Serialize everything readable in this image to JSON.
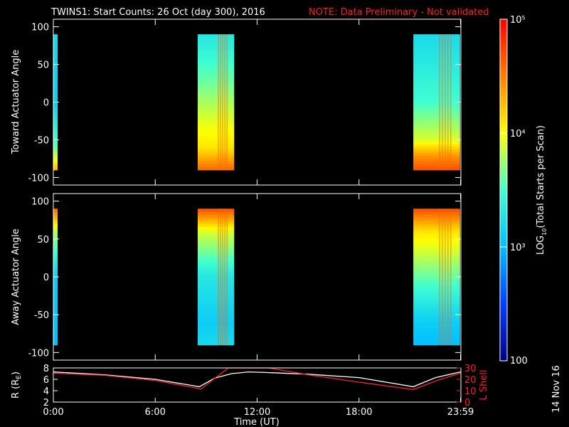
{
  "header": {
    "title": "TWINS1: Start Counts: 26 Oct (day 300), 2016",
    "note": "NOTE: Data Preliminary - Not validated"
  },
  "colorbar": {
    "label": "LOG10(Total Starts per Scan)",
    "label_base": "LOG",
    "label_sub": "10",
    "label_rest": "(Total Starts per Scan)",
    "ticks": [
      "100",
      "10³",
      "10⁴",
      "10⁵"
    ],
    "range": [
      100,
      100000
    ],
    "scale": "log",
    "colors": [
      "#00008b",
      "#0040ff",
      "#00c0ff",
      "#40ffd0",
      "#ffff00",
      "#ff8000",
      "#ff0000"
    ]
  },
  "footer": {
    "date_stamp": "14 Nov 16"
  },
  "chart_data": [
    {
      "type": "heatmap",
      "panel": "toward",
      "ylabel": "Toward Actuator Angle",
      "xlim": [
        "0:00",
        "23:59"
      ],
      "ylim": [
        -110,
        110
      ],
      "yticks": [
        "100",
        "50",
        "0",
        "-50",
        "-100"
      ],
      "angle_range": [
        -90,
        90
      ],
      "data_intervals": [
        {
          "start_hour": 0.0,
          "end_hour": 0.25,
          "level_by_angle": [
            {
              "angle": 90,
              "log": 3.2
            },
            {
              "angle": 0,
              "log": 3.1
            },
            {
              "angle": -60,
              "log": 3.6
            },
            {
              "angle": -90,
              "log": 4.3
            }
          ]
        },
        {
          "start_hour": 8.5,
          "end_hour": 10.65,
          "level_by_angle": [
            {
              "angle": 90,
              "log": 3.3
            },
            {
              "angle": 30,
              "log": 3.6
            },
            {
              "angle": -30,
              "log": 3.95
            },
            {
              "angle": -60,
              "log": 4.1
            },
            {
              "angle": -90,
              "log": 4.6
            }
          ]
        },
        {
          "start_hour": 21.2,
          "end_hour": 23.95,
          "level_by_angle": [
            {
              "angle": 90,
              "log": 3.2
            },
            {
              "angle": 0,
              "log": 3.5
            },
            {
              "angle": -50,
              "log": 3.9
            },
            {
              "angle": -70,
              "log": 4.4
            },
            {
              "angle": -90,
              "log": 4.7
            }
          ]
        }
      ]
    },
    {
      "type": "heatmap",
      "panel": "away",
      "ylabel": "Away Actuator Angle",
      "xlim": [
        "0:00",
        "23:59"
      ],
      "ylim": [
        -110,
        110
      ],
      "yticks": [
        "100",
        "50",
        "0",
        "-50",
        "-100"
      ],
      "angle_range": [
        -90,
        90
      ],
      "data_intervals": [
        {
          "start_hour": 0.0,
          "end_hour": 0.25,
          "level_by_angle": [
            {
              "angle": 90,
              "log": 4.6
            },
            {
              "angle": 60,
              "log": 3.8
            },
            {
              "angle": 0,
              "log": 3.1
            },
            {
              "angle": -90,
              "log": 3.0
            }
          ]
        },
        {
          "start_hour": 8.5,
          "end_hour": 10.65,
          "level_by_angle": [
            {
              "angle": 90,
              "log": 4.7
            },
            {
              "angle": 60,
              "log": 3.9
            },
            {
              "angle": 0,
              "log": 3.3
            },
            {
              "angle": -60,
              "log": 3.1
            },
            {
              "angle": -90,
              "log": 3.2
            }
          ]
        },
        {
          "start_hour": 21.2,
          "end_hour": 23.95,
          "level_by_angle": [
            {
              "angle": 90,
              "log": 4.7
            },
            {
              "angle": 60,
              "log": 4.1
            },
            {
              "angle": 0,
              "log": 3.6
            },
            {
              "angle": -60,
              "log": 3.1
            },
            {
              "angle": -90,
              "log": 3.0
            }
          ]
        }
      ]
    },
    {
      "type": "line",
      "panel": "orbit",
      "xlabel": "Time (UT)",
      "xticks": [
        "0:00",
        "6:00",
        "12:00",
        "18:00",
        "23:59"
      ],
      "ylabel_left": "R (RE)",
      "ylabel_left_base": "R (R",
      "ylabel_left_sub": "E",
      "ylabel_left_end": ")",
      "ylim_left": [
        2,
        8
      ],
      "yticks_left": [
        "8",
        "6",
        "4",
        "2"
      ],
      "ylabel_right": "L Shell",
      "ylim_right": [
        0,
        30
      ],
      "yticks_right": [
        "30",
        "20",
        "10",
        "0"
      ],
      "series": [
        {
          "name": "R (RE)",
          "axis": "left",
          "x": [
            0,
            3,
            6,
            8.6,
            9.5,
            10.5,
            11.5,
            12.5,
            15,
            18,
            21.2,
            22.5,
            23.98
          ],
          "y": [
            7.3,
            6.8,
            6.0,
            4.7,
            6.2,
            7.0,
            7.3,
            7.2,
            6.9,
            6.3,
            4.7,
            6.3,
            7.3
          ]
        },
        {
          "name": "L Shell",
          "axis": "right",
          "x": [
            0,
            3,
            6,
            8.7,
            9.6,
            10.3,
            10.4,
            12.6,
            12.7,
            15,
            18,
            21.2,
            22.6,
            23.98
          ],
          "y": [
            25.5,
            23.5,
            19,
            11.5,
            22,
            30,
            31,
            31,
            30,
            24,
            17.5,
            11,
            19,
            25.5
          ]
        }
      ]
    }
  ]
}
